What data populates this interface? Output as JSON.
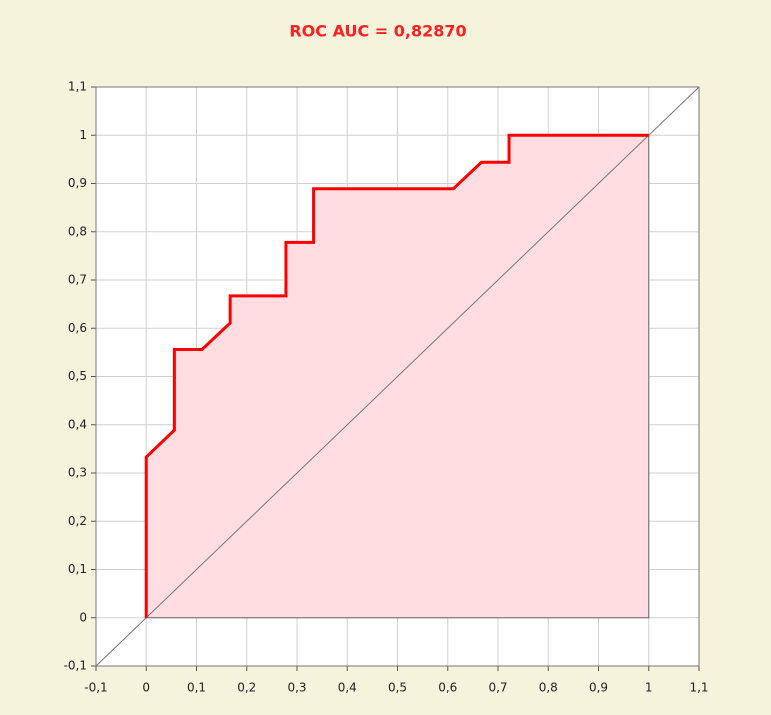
{
  "chart_data": {
    "type": "line",
    "title": "ROC AUC = 0,82870",
    "x": [
      0,
      0,
      0.056,
      0.056,
      0.111,
      0.167,
      0.167,
      0.278,
      0.278,
      0.333,
      0.333,
      0.611,
      0.667,
      0.722,
      0.722,
      1
    ],
    "values": [
      0,
      0.333,
      0.389,
      0.556,
      0.556,
      0.611,
      0.667,
      0.667,
      0.778,
      0.778,
      0.889,
      0.889,
      0.944,
      0.944,
      1,
      1
    ],
    "color": "#ff0000",
    "fill_color": "#ffdde0",
    "diagonal": {
      "x": [
        -0.1,
        1.1
      ],
      "y": [
        -0.1,
        1.1
      ],
      "color": "#777777"
    },
    "xlim": [
      -0.1,
      1.1
    ],
    "ylim": [
      -0.1,
      1.1
    ],
    "xticks": [
      {
        "value": -0.1,
        "label": "-0,1"
      },
      0,
      {
        "value": 0.1,
        "label": "0,1"
      },
      {
        "value": 0.2,
        "label": "0,2"
      },
      {
        "value": 0.3,
        "label": "0,3"
      },
      {
        "value": 0.4,
        "label": "0,4"
      },
      {
        "value": 0.5,
        "label": "0,5"
      },
      {
        "value": 0.6,
        "label": "0,6"
      },
      {
        "value": 0.7,
        "label": "0,7"
      },
      {
        "value": 0.8,
        "label": "0,8"
      },
      {
        "value": 0.9,
        "label": "0,9"
      },
      1,
      {
        "value": 1.1,
        "label": "1,1"
      }
    ],
    "yticks": [
      {
        "value": -0.1,
        "label": "-0,1"
      },
      0,
      {
        "value": 0.1,
        "label": "0,1"
      },
      {
        "value": 0.2,
        "label": "0,2"
      },
      {
        "value": 0.3,
        "label": "0,3"
      },
      {
        "value": 0.4,
        "label": "0,4"
      },
      {
        "value": 0.5,
        "label": "0,5"
      },
      {
        "value": 0.6,
        "label": "0,6"
      },
      {
        "value": 0.7,
        "label": "0,7"
      },
      {
        "value": 0.8,
        "label": "0,8"
      },
      {
        "value": 0.9,
        "label": "0,9"
      },
      1,
      {
        "value": 1.1,
        "label": "1,1"
      }
    ],
    "grid": true
  }
}
